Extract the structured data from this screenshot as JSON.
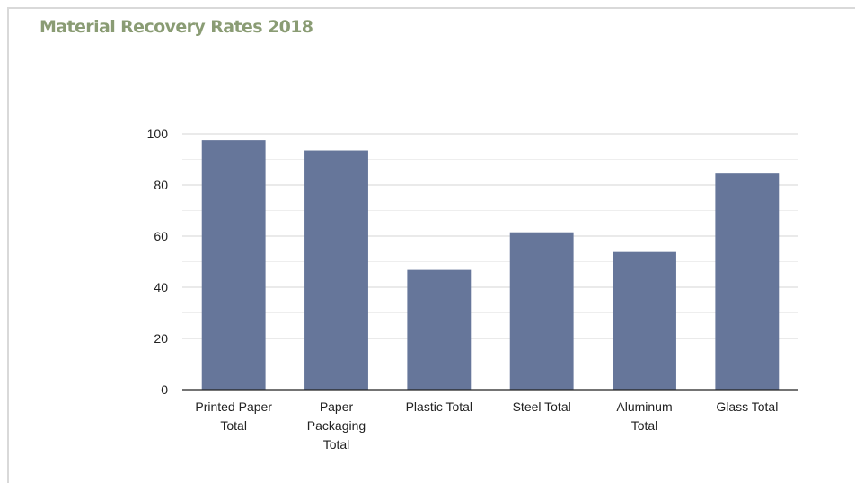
{
  "chart_data": {
    "type": "bar",
    "title": "Material Recovery Rates 2018",
    "categories": [
      [
        "Printed Paper",
        "Total"
      ],
      [
        "Paper",
        "Packaging",
        "Total"
      ],
      [
        "Plastic Total"
      ],
      [
        "Steel Total"
      ],
      [
        "Aluminum",
        "Total"
      ],
      [
        "Glass Total"
      ]
    ],
    "values": [
      97.5,
      93.5,
      46.8,
      61.5,
      53.8,
      84.5
    ],
    "ylim": [
      0,
      100
    ],
    "yticks": [
      0,
      20,
      40,
      60,
      80,
      100
    ],
    "grid": true,
    "bar_color": "#66769a",
    "grid_color": "#d6d6d6",
    "axis_color": "#222222"
  }
}
